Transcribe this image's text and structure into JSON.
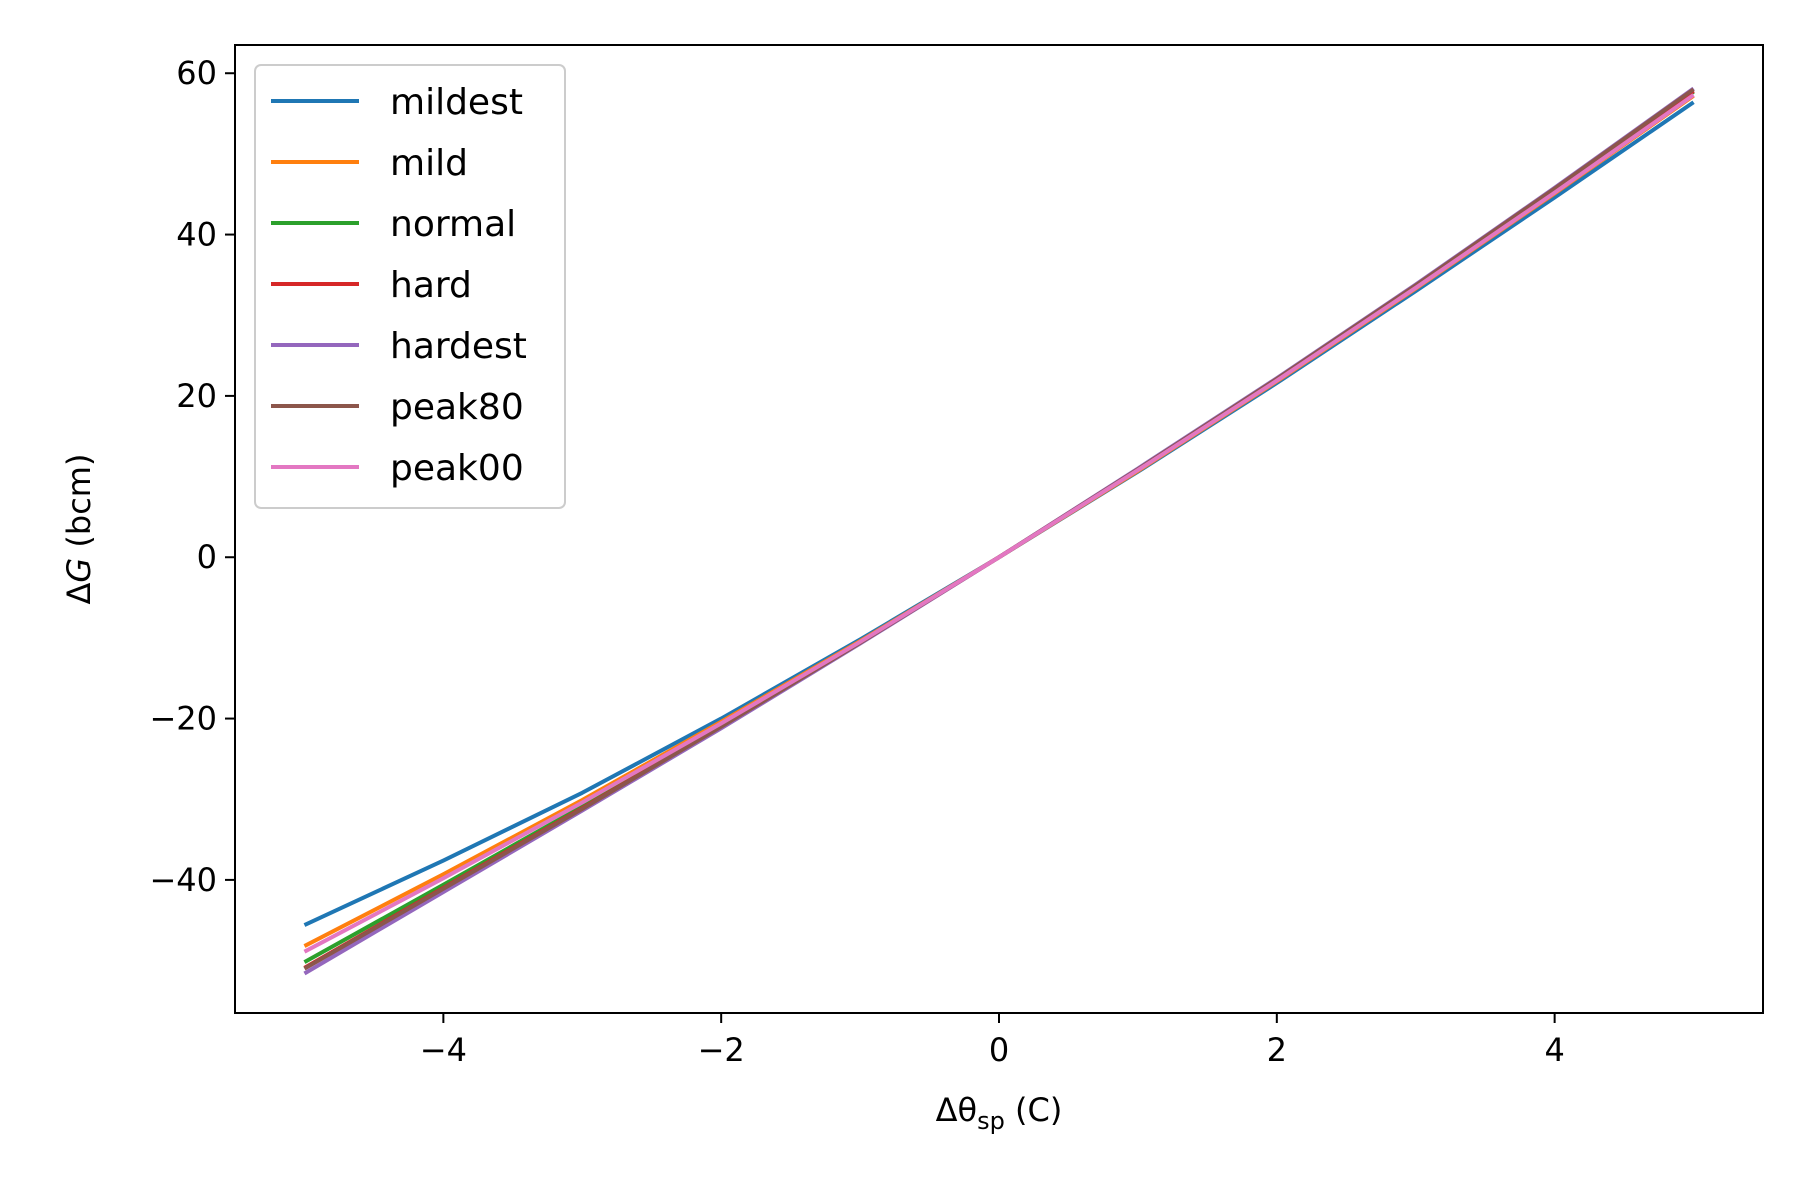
{
  "chart_data": {
    "type": "line",
    "xlabel": {
      "prefix": "Δθ",
      "sub": "sp",
      "units": " (C)"
    },
    "ylabel": {
      "prefix": "Δ",
      "italic": "G",
      "units": " (bcm)"
    },
    "xlim": [
      -5.5,
      5.5
    ],
    "ylim": [
      -56.5,
      63.5
    ],
    "x_ticks": [
      -4,
      -2,
      0,
      2,
      4
    ],
    "x_tick_labels": [
      "−4",
      "−2",
      "0",
      "2",
      "4"
    ],
    "y_ticks": [
      -40,
      -20,
      0,
      20,
      40,
      60
    ],
    "y_tick_labels": [
      "−40",
      "−20",
      "0",
      "20",
      "40",
      "60"
    ],
    "grid": false,
    "legend_position": "upper-left",
    "x": [
      -5,
      -4,
      -3,
      -2,
      -1,
      0,
      1,
      2,
      3,
      4,
      5
    ],
    "series": [
      {
        "name": "mildest",
        "color": "#1f77b4",
        "values": [
          -45.6,
          -37.6,
          -29.2,
          -20.0,
          -10.2,
          0,
          10.6,
          21.6,
          33.0,
          44.6,
          56.4
        ]
      },
      {
        "name": "mild",
        "color": "#ff7f0e",
        "values": [
          -48.2,
          -39.3,
          -30.1,
          -20.4,
          -10.4,
          0,
          10.7,
          21.8,
          33.3,
          45.1,
          57.2
        ]
      },
      {
        "name": "normal",
        "color": "#2ca02c",
        "values": [
          -50.2,
          -40.6,
          -30.9,
          -20.9,
          -10.6,
          0,
          10.9,
          22.0,
          33.6,
          45.5,
          57.7
        ]
      },
      {
        "name": "hard",
        "color": "#d62728",
        "values": [
          -50.9,
          -41.0,
          -31.1,
          -21.0,
          -10.6,
          0,
          10.9,
          22.1,
          33.7,
          45.6,
          57.8
        ]
      },
      {
        "name": "hardest",
        "color": "#9467bd",
        "values": [
          -51.6,
          -41.5,
          -31.4,
          -21.2,
          -10.7,
          0,
          11.0,
          22.2,
          33.8,
          45.8,
          58.1
        ]
      },
      {
        "name": "peak80",
        "color": "#8c564b",
        "values": [
          -51.0,
          -41.1,
          -31.2,
          -21.0,
          -10.6,
          0,
          10.9,
          22.1,
          33.7,
          45.7,
          58.0
        ]
      },
      {
        "name": "peak00",
        "color": "#e377c2",
        "values": [
          -48.9,
          -39.8,
          -30.4,
          -20.6,
          -10.5,
          0,
          10.8,
          21.9,
          33.4,
          45.2,
          57.3
        ]
      }
    ]
  }
}
